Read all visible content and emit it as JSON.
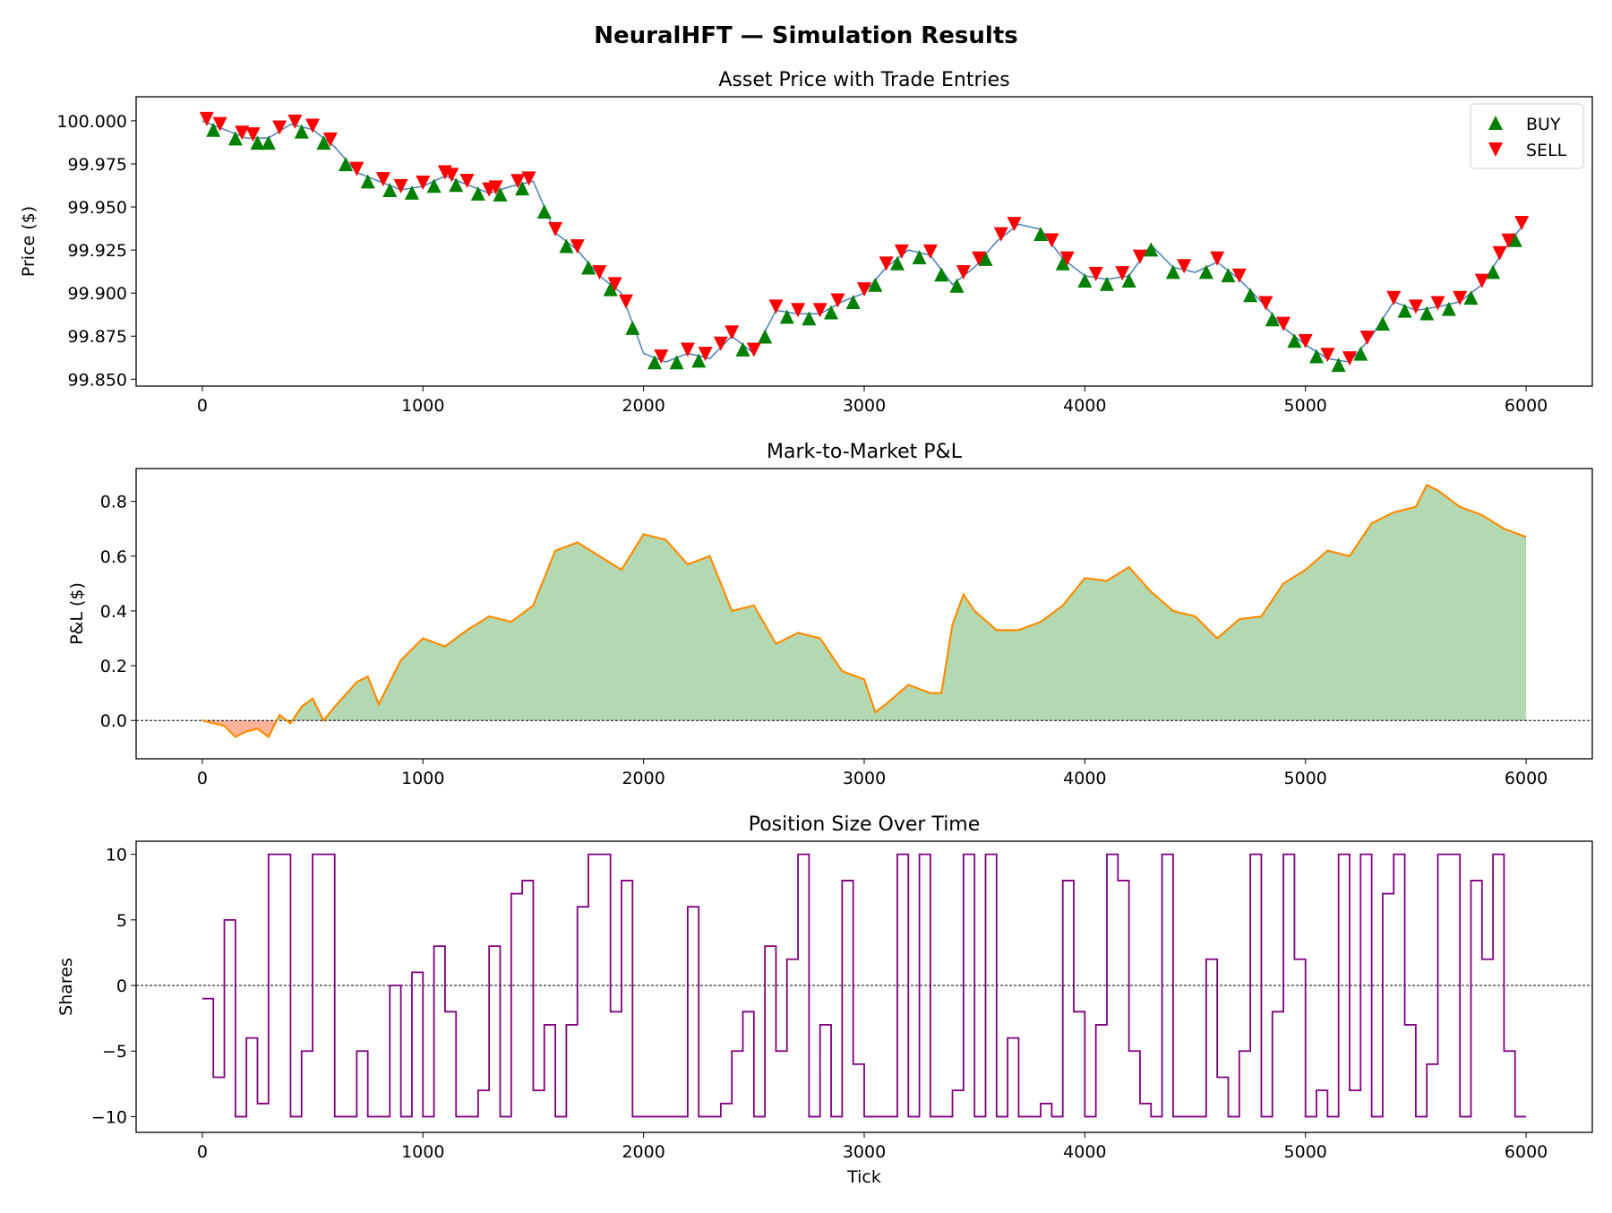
{
  "figure_title": "NeuralHFT — Simulation Results",
  "colors": {
    "price": "#4a7fb5",
    "buy": "#008000",
    "sell": "#ff0000",
    "pnl_line": "#ff8c00",
    "pnl_pos": "#b3d9b3",
    "pnl_neg": "#ffb399",
    "position": "#800080"
  },
  "chart_data": [
    {
      "type": "line",
      "title": "Asset Price with Trade Entries",
      "xlabel": "",
      "ylabel": "Price ($)",
      "xlim": [
        -300,
        6300
      ],
      "ylim": [
        99.846,
        100.014
      ],
      "xticks": [
        0,
        1000,
        2000,
        3000,
        4000,
        5000,
        6000
      ],
      "yticks": [
        99.85,
        99.875,
        99.9,
        99.925,
        99.95,
        99.975,
        100.0
      ],
      "ytick_labels": [
        "99.850",
        "99.875",
        "99.900",
        "99.925",
        "99.950",
        "99.975",
        "100.000"
      ],
      "legend": {
        "position": "top-right",
        "entries": [
          "BUY",
          "SELL"
        ]
      },
      "x": [
        0,
        100,
        200,
        300,
        400,
        500,
        600,
        700,
        800,
        900,
        1000,
        1100,
        1200,
        1300,
        1400,
        1500,
        1600,
        1700,
        1800,
        1900,
        2000,
        2100,
        2200,
        2300,
        2400,
        2500,
        2600,
        2700,
        2800,
        2900,
        3000,
        3100,
        3200,
        3300,
        3400,
        3500,
        3600,
        3700,
        3800,
        3900,
        4000,
        4100,
        4200,
        4300,
        4400,
        4500,
        4600,
        4700,
        4800,
        4900,
        5000,
        5100,
        5200,
        5300,
        5400,
        5500,
        5600,
        5700,
        5800,
        5900,
        6000
      ],
      "price": [
        100.0,
        99.995,
        99.99,
        99.99,
        99.998,
        99.995,
        99.985,
        99.97,
        99.965,
        99.96,
        99.962,
        99.968,
        99.963,
        99.958,
        99.962,
        99.965,
        99.935,
        99.925,
        99.91,
        99.9,
        99.865,
        99.86,
        99.865,
        99.862,
        99.875,
        99.865,
        99.89,
        99.888,
        99.888,
        99.895,
        99.9,
        99.915,
        99.925,
        99.922,
        99.905,
        99.915,
        99.93,
        99.94,
        99.937,
        99.92,
        99.91,
        99.908,
        99.91,
        99.928,
        99.915,
        99.912,
        99.918,
        99.908,
        99.895,
        99.88,
        99.87,
        99.862,
        99.86,
        99.875,
        99.895,
        99.89,
        99.892,
        99.895,
        99.905,
        99.925,
        99.942
      ],
      "buy_ticks": [
        50,
        150,
        250,
        300,
        450,
        550,
        650,
        750,
        850,
        950,
        1050,
        1150,
        1250,
        1350,
        1450,
        1550,
        1650,
        1750,
        1850,
        1950,
        2050,
        2150,
        2250,
        2450,
        2550,
        2650,
        2750,
        2850,
        2950,
        3050,
        3150,
        3250,
        3350,
        3420,
        3550,
        3800,
        3900,
        4000,
        4100,
        4200,
        4300,
        4400,
        4550,
        4650,
        4750,
        4850,
        4950,
        5050,
        5150,
        5250,
        5350,
        5450,
        5550,
        5650,
        5750,
        5850,
        5950
      ],
      "sell_ticks": [
        20,
        80,
        180,
        230,
        350,
        420,
        500,
        580,
        700,
        820,
        900,
        1000,
        1100,
        1130,
        1200,
        1300,
        1330,
        1430,
        1480,
        1600,
        1700,
        1800,
        1870,
        1920,
        2080,
        2200,
        2280,
        2350,
        2400,
        2500,
        2600,
        2700,
        2800,
        2880,
        3000,
        3100,
        3170,
        3300,
        3450,
        3520,
        3620,
        3680,
        3850,
        3920,
        4050,
        4170,
        4250,
        4450,
        4600,
        4700,
        4820,
        4900,
        5000,
        5100,
        5200,
        5280,
        5400,
        5500,
        5600,
        5700,
        5800,
        5880,
        5920,
        5980
      ]
    },
    {
      "type": "area",
      "title": "Mark-to-Market P&L",
      "xlabel": "",
      "ylabel": "P&L ($)",
      "xlim": [
        -300,
        6300
      ],
      "ylim": [
        -0.14,
        0.92
      ],
      "xticks": [
        0,
        1000,
        2000,
        3000,
        4000,
        5000,
        6000
      ],
      "yticks": [
        0.0,
        0.2,
        0.4,
        0.6,
        0.8
      ],
      "ytick_labels": [
        "0.0",
        "0.2",
        "0.4",
        "0.6",
        "0.8"
      ],
      "reference_line": 0,
      "x": [
        0,
        50,
        100,
        150,
        200,
        250,
        300,
        350,
        400,
        450,
        500,
        550,
        600,
        700,
        750,
        800,
        900,
        1000,
        1100,
        1200,
        1300,
        1400,
        1500,
        1600,
        1700,
        1800,
        1900,
        2000,
        2100,
        2200,
        2300,
        2400,
        2500,
        2600,
        2700,
        2800,
        2900,
        3000,
        3050,
        3100,
        3200,
        3300,
        3350,
        3400,
        3450,
        3500,
        3600,
        3700,
        3800,
        3900,
        4000,
        4100,
        4200,
        4300,
        4400,
        4500,
        4600,
        4700,
        4800,
        4900,
        5000,
        5100,
        5200,
        5300,
        5400,
        5500,
        5550,
        5600,
        5700,
        5800,
        5900,
        6000
      ],
      "pnl": [
        0,
        -0.01,
        -0.02,
        -0.06,
        -0.04,
        -0.03,
        -0.06,
        0.02,
        -0.01,
        0.05,
        0.08,
        0.0,
        0.05,
        0.14,
        0.16,
        0.06,
        0.22,
        0.3,
        0.27,
        0.33,
        0.38,
        0.36,
        0.42,
        0.62,
        0.65,
        0.6,
        0.55,
        0.68,
        0.66,
        0.57,
        0.6,
        0.4,
        0.42,
        0.28,
        0.32,
        0.3,
        0.18,
        0.15,
        0.03,
        0.06,
        0.13,
        0.1,
        0.1,
        0.35,
        0.46,
        0.4,
        0.33,
        0.33,
        0.36,
        0.42,
        0.52,
        0.51,
        0.56,
        0.47,
        0.4,
        0.38,
        0.3,
        0.37,
        0.38,
        0.5,
        0.55,
        0.62,
        0.6,
        0.72,
        0.76,
        0.78,
        0.86,
        0.84,
        0.78,
        0.75,
        0.7,
        0.67
      ]
    },
    {
      "type": "line",
      "title": "Position Size Over Time",
      "xlabel": "Tick",
      "ylabel": "Shares",
      "xlim": [
        -300,
        6300
      ],
      "ylim": [
        -11.2,
        11
      ],
      "xticks": [
        0,
        1000,
        2000,
        3000,
        4000,
        5000,
        6000
      ],
      "yticks": [
        -10,
        -5,
        0,
        5,
        10
      ],
      "ytick_labels": [
        "−10",
        "−5",
        "0",
        "5",
        "10"
      ],
      "reference_line": 0,
      "step": 50,
      "position": [
        -1,
        -7,
        5,
        -10,
        -4,
        -9,
        10,
        10,
        -10,
        -5,
        10,
        10,
        -10,
        -10,
        -5,
        -10,
        -10,
        0,
        -10,
        1,
        -10,
        3,
        -2,
        -10,
        -10,
        -8,
        3,
        -10,
        7,
        8,
        -8,
        -3,
        -10,
        -3,
        6,
        10,
        10,
        -2,
        8,
        -10,
        -10,
        -10,
        -10,
        -10,
        6,
        -10,
        -10,
        -9,
        -5,
        -2,
        -10,
        3,
        -5,
        2,
        10,
        -10,
        -3,
        -10,
        8,
        -6,
        -10,
        -10,
        -10,
        10,
        -10,
        10,
        -10,
        -10,
        -8,
        10,
        -10,
        10,
        -10,
        -4,
        -10,
        -10,
        -9,
        -10,
        8,
        -2,
        -10,
        -3,
        10,
        8,
        -5,
        -9,
        -10,
        10,
        -10,
        -10,
        -10,
        2,
        -7,
        -10,
        -5,
        10,
        -10,
        -2,
        10,
        2,
        -10,
        -8,
        -10,
        10,
        -8,
        10,
        -10,
        7,
        10,
        -3,
        -10,
        -6,
        10,
        10,
        -10,
        8,
        2,
        10,
        -5,
        -10,
        -10
      ]
    }
  ]
}
